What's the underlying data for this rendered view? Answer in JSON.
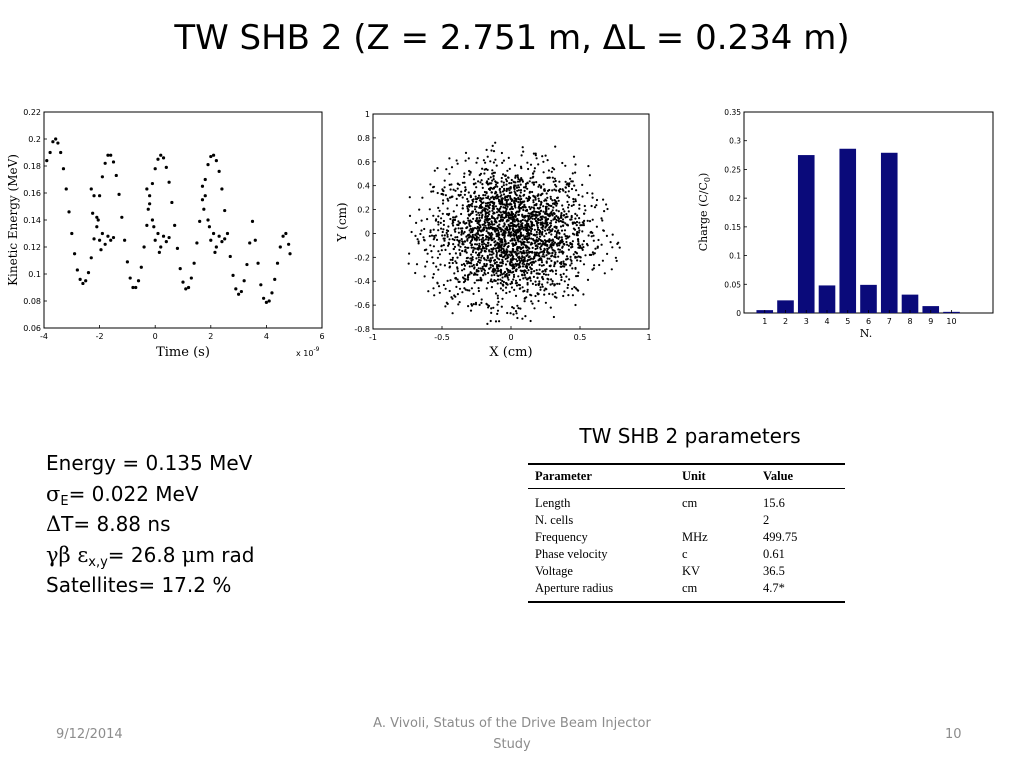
{
  "slide": {
    "title": "TW SHB 2 (Z = 2.751 m, ΔL = 0.234 m)"
  },
  "beam_params": {
    "energy": "Energy = 0.135 MeV",
    "sigma_symbol": "σ",
    "sigma_sub": "E",
    "sigma_rest": "= 0.022 MeV",
    "dt_symbol": "Δ",
    "dt_rest": "T= 8.88 ns",
    "emit_symbol": "γβ ε",
    "emit_sub": "x,y",
    "emit_rest": "= 26.8 ",
    "emit_mu": "μ",
    "emit_unit": "m rad",
    "satellites": "Satellites= 17.2 %"
  },
  "table": {
    "caption": "TW SHB 2 parameters",
    "headers": [
      "Parameter",
      "Unit",
      "Value"
    ],
    "rows": [
      [
        "Length",
        "cm",
        "15.6"
      ],
      [
        "N. cells",
        "",
        "2"
      ],
      [
        "Frequency",
        "MHz",
        "499.75"
      ],
      [
        "Phase velocity",
        "c",
        "0.61"
      ],
      [
        "Voltage",
        "KV",
        "36.5"
      ],
      [
        "Aperture radius",
        "cm",
        "4.7*"
      ]
    ]
  },
  "footer": {
    "date": "9/12/2014",
    "center_line1": "A. Vivoli, Status of the Drive Beam Injector",
    "center_line2": "Study",
    "page": "10"
  },
  "chart_data": [
    {
      "type": "scatter",
      "title": "",
      "xlabel": "Time  (s)",
      "ylabel": "Kinetic Energy  (MeV)",
      "x_multiplier": "x 10",
      "x_multiplier_exp": "-9",
      "xlim": [
        -4,
        6
      ],
      "ylim": [
        0.06,
        0.22
      ],
      "xticks": [
        "-4",
        "-2",
        "0",
        "2",
        "4",
        "6"
      ],
      "yticks": [
        "0.06",
        "0.08",
        "0.1",
        "0.12",
        "0.14",
        "0.16",
        "0.18",
        "0.2",
        "0.22"
      ],
      "marker_color": "#000000",
      "points": [
        [
          -3.9,
          0.184
        ],
        [
          -3.78,
          0.19
        ],
        [
          -3.68,
          0.198
        ],
        [
          -3.58,
          0.2
        ],
        [
          -3.5,
          0.197
        ],
        [
          -3.4,
          0.19
        ],
        [
          -3.3,
          0.178
        ],
        [
          -3.2,
          0.163
        ],
        [
          -3.1,
          0.146
        ],
        [
          -3.0,
          0.13
        ],
        [
          -2.9,
          0.115
        ],
        [
          -2.8,
          0.103
        ],
        [
          -2.7,
          0.096
        ],
        [
          -2.6,
          0.093
        ],
        [
          -2.5,
          0.095
        ],
        [
          -2.4,
          0.101
        ],
        [
          -2.3,
          0.112
        ],
        [
          -2.2,
          0.126
        ],
        [
          -2.1,
          0.142
        ],
        [
          -2.0,
          0.158
        ],
        [
          -1.9,
          0.172
        ],
        [
          -1.8,
          0.182
        ],
        [
          -1.7,
          0.188
        ],
        [
          -1.6,
          0.188
        ],
        [
          -1.5,
          0.183
        ],
        [
          -1.4,
          0.173
        ],
        [
          -1.3,
          0.159
        ],
        [
          -1.2,
          0.142
        ],
        [
          -1.1,
          0.125
        ],
        [
          -1.0,
          0.109
        ],
        [
          -0.9,
          0.097
        ],
        [
          -0.8,
          0.09
        ],
        [
          -0.7,
          0.09
        ],
        [
          -0.6,
          0.095
        ],
        [
          -0.5,
          0.105
        ],
        [
          -0.4,
          0.12
        ],
        [
          -0.3,
          0.136
        ],
        [
          -0.2,
          0.152
        ],
        [
          -0.1,
          0.167
        ],
        [
          0.0,
          0.178
        ],
        [
          0.1,
          0.185
        ],
        [
          0.2,
          0.188
        ],
        [
          0.3,
          0.186
        ],
        [
          0.4,
          0.179
        ],
        [
          0.5,
          0.168
        ],
        [
          0.6,
          0.153
        ],
        [
          0.7,
          0.136
        ],
        [
          0.8,
          0.119
        ],
        [
          0.9,
          0.104
        ],
        [
          1.0,
          0.094
        ],
        [
          1.1,
          0.089
        ],
        [
          1.2,
          0.09
        ],
        [
          1.3,
          0.097
        ],
        [
          1.4,
          0.108
        ],
        [
          1.5,
          0.123
        ],
        [
          1.6,
          0.139
        ],
        [
          1.7,
          0.155
        ],
        [
          1.8,
          0.17
        ],
        [
          1.9,
          0.181
        ],
        [
          2.0,
          0.187
        ],
        [
          2.1,
          0.188
        ],
        [
          2.2,
          0.184
        ],
        [
          2.3,
          0.176
        ],
        [
          2.4,
          0.163
        ],
        [
          2.5,
          0.147
        ],
        [
          2.6,
          0.13
        ],
        [
          2.7,
          0.113
        ],
        [
          2.8,
          0.099
        ],
        [
          2.9,
          0.089
        ],
        [
          3.0,
          0.085
        ],
        [
          3.1,
          0.087
        ],
        [
          3.2,
          0.095
        ],
        [
          3.3,
          0.107
        ],
        [
          3.4,
          0.123
        ],
        [
          3.5,
          0.139
        ],
        [
          3.6,
          0.125
        ],
        [
          3.7,
          0.108
        ],
        [
          3.8,
          0.092
        ],
        [
          3.9,
          0.082
        ],
        [
          4.0,
          0.079
        ],
        [
          4.1,
          0.08
        ],
        [
          4.2,
          0.086
        ],
        [
          4.3,
          0.096
        ],
        [
          4.4,
          0.108
        ],
        [
          4.5,
          0.12
        ],
        [
          4.6,
          0.128
        ],
        [
          4.7,
          0.13
        ],
        [
          4.8,
          0.122
        ],
        [
          4.85,
          0.115
        ],
        [
          -2.3,
          0.163
        ],
        [
          -2.2,
          0.158
        ],
        [
          -2.1,
          0.135
        ],
        [
          -2.0,
          0.125
        ],
        [
          -1.9,
          0.13
        ],
        [
          -1.8,
          0.122
        ],
        [
          -1.7,
          0.128
        ],
        [
          -1.6,
          0.125
        ],
        [
          -1.5,
          0.127
        ],
        [
          -2.25,
          0.145
        ],
        [
          -2.05,
          0.14
        ],
        [
          -1.95,
          0.118
        ],
        [
          -0.3,
          0.163
        ],
        [
          -0.2,
          0.158
        ],
        [
          -0.1,
          0.14
        ],
        [
          0.0,
          0.125
        ],
        [
          0.1,
          0.13
        ],
        [
          0.2,
          0.12
        ],
        [
          0.3,
          0.128
        ],
        [
          0.4,
          0.124
        ],
        [
          0.5,
          0.127
        ],
        [
          -0.25,
          0.148
        ],
        [
          -0.05,
          0.135
        ],
        [
          0.15,
          0.116
        ],
        [
          1.7,
          0.165
        ],
        [
          1.8,
          0.158
        ],
        [
          1.9,
          0.14
        ],
        [
          2.0,
          0.125
        ],
        [
          2.1,
          0.13
        ],
        [
          2.2,
          0.12
        ],
        [
          2.3,
          0.128
        ],
        [
          2.4,
          0.124
        ],
        [
          2.5,
          0.126
        ],
        [
          1.75,
          0.148
        ],
        [
          1.95,
          0.135
        ],
        [
          2.15,
          0.116
        ]
      ]
    },
    {
      "type": "scatter",
      "title": "",
      "xlabel": "X  (cm)",
      "ylabel": "Y  (cm)",
      "xlim": [
        -1,
        1
      ],
      "ylim": [
        -0.8,
        1
      ],
      "xticks": [
        "-1",
        "-0.5",
        "0",
        "0.5",
        "1"
      ],
      "yticks": [
        "-0.8",
        "-0.6",
        "-0.4",
        "-0.2",
        "0",
        "0.2",
        "0.4",
        "0.6",
        "0.8",
        "1"
      ],
      "distribution": "approximately Gaussian cloud centred at (0, 0), extent about ±0.75 cm",
      "marker_color": "#000000"
    },
    {
      "type": "bar",
      "title": "",
      "xlabel": "N.",
      "ylabel": "Charge (C/C",
      "ylabel_sub": "0",
      "ylabel_close": ")",
      "categories": [
        "1",
        "2",
        "3",
        "4",
        "5",
        "6",
        "7",
        "8",
        "9",
        "10"
      ],
      "values": [
        0.005,
        0.022,
        0.275,
        0.048,
        0.286,
        0.049,
        0.279,
        0.032,
        0.012,
        0.002
      ],
      "ylim": [
        0,
        0.35
      ],
      "yticks": [
        "0",
        "0.05",
        "0.1",
        "0.15",
        "0.2",
        "0.25",
        "0.3",
        "0.35"
      ],
      "bar_color": "#0a0a7a"
    }
  ]
}
